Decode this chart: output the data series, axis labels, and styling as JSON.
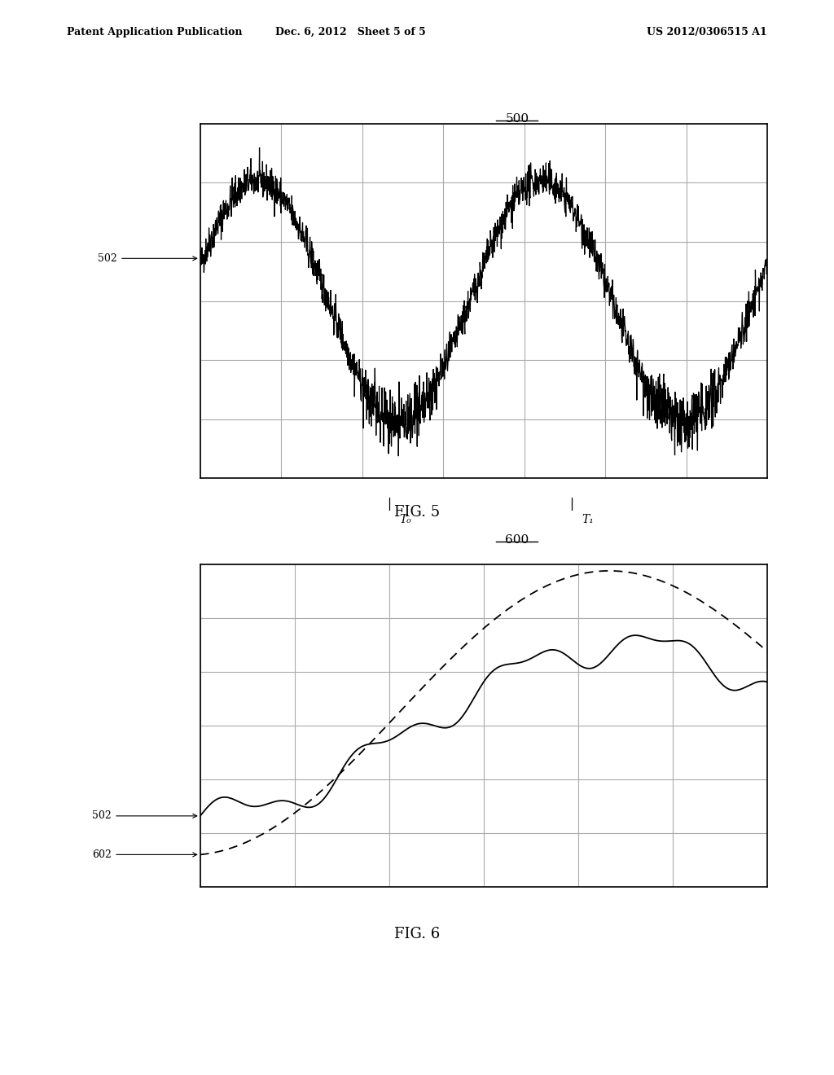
{
  "page_header_left": "Patent Application Publication",
  "page_header_center": "Dec. 6, 2012   Sheet 5 of 5",
  "page_header_right": "US 2012/0306515 A1",
  "fig5_label": "500",
  "fig5_caption": "FIG. 5",
  "fig5_curve_label": "502",
  "fig5_t0_label": "T₀",
  "fig5_t1_label": "T₁",
  "fig6_label": "600",
  "fig6_caption": "FIG. 6",
  "fig6_curve1_label": "602",
  "fig6_curve2_label": "502",
  "background_color": "#ffffff",
  "line_color": "#000000",
  "grid_color": "#aaaaaa"
}
